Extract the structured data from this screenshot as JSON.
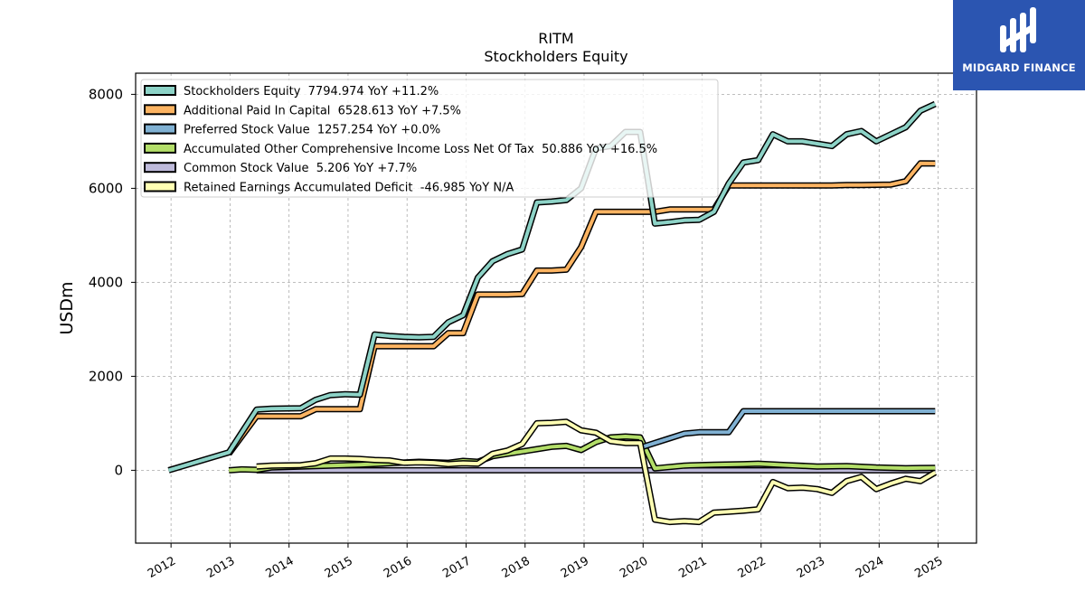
{
  "chart_data": {
    "type": "line",
    "title": "RITM",
    "subtitle": "Stockholders  Equity",
    "ylabel": "USDm",
    "xlabel": "",
    "ylim": [
      -1550,
      8450
    ],
    "xlim": [
      2011.4,
      2025.65
    ],
    "xticks": [
      "2012",
      "2013",
      "2014",
      "2015",
      "2016",
      "2017",
      "2018",
      "2019",
      "2020",
      "2021",
      "2022",
      "2023",
      "2024",
      "2025"
    ],
    "yticks": [
      0,
      2000,
      4000,
      6000,
      8000
    ],
    "grid": true,
    "legend_position": "top-left",
    "series": [
      {
        "name": "Stockholders Equity  7794.974 YoY +11.2%",
        "color": "#8dd3c7",
        "points": [
          [
            2011.96,
            0
          ],
          [
            2012.98,
            380
          ],
          [
            2013.45,
            1290
          ],
          [
            2013.7,
            1310
          ],
          [
            2014.2,
            1320
          ],
          [
            2014.45,
            1500
          ],
          [
            2014.7,
            1600
          ],
          [
            2014.95,
            1620
          ],
          [
            2015.2,
            1610
          ],
          [
            2015.45,
            2890
          ],
          [
            2015.7,
            2860
          ],
          [
            2015.95,
            2840
          ],
          [
            2016.2,
            2830
          ],
          [
            2016.45,
            2840
          ],
          [
            2016.7,
            3150
          ],
          [
            2016.95,
            3300
          ],
          [
            2017.2,
            4100
          ],
          [
            2017.45,
            4450
          ],
          [
            2017.7,
            4600
          ],
          [
            2017.95,
            4700
          ],
          [
            2018.2,
            5700
          ],
          [
            2018.45,
            5720
          ],
          [
            2018.7,
            5750
          ],
          [
            2018.95,
            6000
          ],
          [
            2019.2,
            6850
          ],
          [
            2019.45,
            6900
          ],
          [
            2019.7,
            7200
          ],
          [
            2019.95,
            7200
          ],
          [
            2020.2,
            5250
          ],
          [
            2020.45,
            5280
          ],
          [
            2020.7,
            5320
          ],
          [
            2020.95,
            5330
          ],
          [
            2021.2,
            5500
          ],
          [
            2021.45,
            6100
          ],
          [
            2021.7,
            6550
          ],
          [
            2021.95,
            6600
          ],
          [
            2022.2,
            7150
          ],
          [
            2022.45,
            7000
          ],
          [
            2022.7,
            7000
          ],
          [
            2022.95,
            6950
          ],
          [
            2023.2,
            6900
          ],
          [
            2023.45,
            7150
          ],
          [
            2023.7,
            7220
          ],
          [
            2023.95,
            7000
          ],
          [
            2024.2,
            7150
          ],
          [
            2024.45,
            7300
          ],
          [
            2024.7,
            7650
          ],
          [
            2024.95,
            7795
          ]
        ]
      },
      {
        "name": "Additional Paid In Capital  6528.613 YoY +7.5%",
        "color": "#fdb462",
        "points": [
          [
            2012.98,
            350
          ],
          [
            2013.45,
            1150
          ],
          [
            2013.7,
            1150
          ],
          [
            2014.2,
            1150
          ],
          [
            2014.45,
            1300
          ],
          [
            2014.7,
            1300
          ],
          [
            2014.95,
            1300
          ],
          [
            2015.2,
            1300
          ],
          [
            2015.45,
            2640
          ],
          [
            2015.7,
            2640
          ],
          [
            2015.95,
            2640
          ],
          [
            2016.2,
            2640
          ],
          [
            2016.45,
            2640
          ],
          [
            2016.7,
            2920
          ],
          [
            2016.95,
            2920
          ],
          [
            2017.2,
            3740
          ],
          [
            2017.45,
            3740
          ],
          [
            2017.7,
            3740
          ],
          [
            2017.95,
            3750
          ],
          [
            2018.2,
            4250
          ],
          [
            2018.45,
            4250
          ],
          [
            2018.7,
            4270
          ],
          [
            2018.95,
            4750
          ],
          [
            2019.2,
            5500
          ],
          [
            2019.45,
            5500
          ],
          [
            2019.7,
            5500
          ],
          [
            2019.95,
            5500
          ],
          [
            2020.2,
            5500
          ],
          [
            2020.45,
            5550
          ],
          [
            2020.7,
            5550
          ],
          [
            2020.95,
            5550
          ],
          [
            2021.2,
            5550
          ],
          [
            2021.45,
            6060
          ],
          [
            2021.7,
            6060
          ],
          [
            2021.95,
            6060
          ],
          [
            2022.2,
            6060
          ],
          [
            2022.45,
            6060
          ],
          [
            2022.7,
            6060
          ],
          [
            2022.95,
            6060
          ],
          [
            2023.2,
            6060
          ],
          [
            2023.45,
            6070
          ],
          [
            2023.7,
            6070
          ],
          [
            2023.95,
            6075
          ],
          [
            2024.2,
            6080
          ],
          [
            2024.45,
            6150
          ],
          [
            2024.7,
            6530
          ],
          [
            2024.95,
            6529
          ]
        ]
      },
      {
        "name": "Preferred Stock Value  1257.254 YoY +0.0%",
        "color": "#80b1d3",
        "points": [
          [
            2019.95,
            480
          ],
          [
            2020.2,
            580
          ],
          [
            2020.45,
            680
          ],
          [
            2020.7,
            780
          ],
          [
            2020.95,
            810
          ],
          [
            2021.2,
            810
          ],
          [
            2021.45,
            810
          ],
          [
            2021.7,
            1257
          ],
          [
            2021.95,
            1257
          ],
          [
            2022.45,
            1257
          ],
          [
            2022.95,
            1257
          ],
          [
            2023.45,
            1257
          ],
          [
            2023.95,
            1257
          ],
          [
            2024.45,
            1257
          ],
          [
            2024.95,
            1257
          ]
        ]
      },
      {
        "name": "Accumulated Other Comprehensive Income Loss Net Of Tax  50.886 YoY +16.5%",
        "color": "#b3de69",
        "points": [
          [
            2012.98,
            0
          ],
          [
            2013.2,
            20
          ],
          [
            2013.45,
            10
          ],
          [
            2013.7,
            60
          ],
          [
            2014.2,
            80
          ],
          [
            2014.7,
            100
          ],
          [
            2015.2,
            120
          ],
          [
            2015.7,
            150
          ],
          [
            2016.2,
            180
          ],
          [
            2016.7,
            160
          ],
          [
            2016.95,
            200
          ],
          [
            2017.2,
            180
          ],
          [
            2017.45,
            300
          ],
          [
            2017.7,
            350
          ],
          [
            2017.95,
            400
          ],
          [
            2018.2,
            450
          ],
          [
            2018.45,
            500
          ],
          [
            2018.7,
            520
          ],
          [
            2018.95,
            430
          ],
          [
            2019.2,
            600
          ],
          [
            2019.45,
            700
          ],
          [
            2019.7,
            720
          ],
          [
            2019.95,
            700
          ],
          [
            2020.2,
            40
          ],
          [
            2020.7,
            100
          ],
          [
            2021.2,
            120
          ],
          [
            2021.7,
            130
          ],
          [
            2021.95,
            140
          ],
          [
            2022.45,
            110
          ],
          [
            2022.95,
            80
          ],
          [
            2023.45,
            90
          ],
          [
            2023.95,
            60
          ],
          [
            2024.45,
            44
          ],
          [
            2024.95,
            51
          ]
        ]
      },
      {
        "name": "Common Stock Value  5.206 YoY +7.7%",
        "color": "#bebada",
        "points": [
          [
            2013.45,
            0
          ],
          [
            2014.45,
            0
          ],
          [
            2015.45,
            0
          ],
          [
            2016.45,
            0
          ],
          [
            2017.45,
            0
          ],
          [
            2018.45,
            0
          ],
          [
            2019.45,
            0
          ],
          [
            2020.45,
            0
          ],
          [
            2021.45,
            0
          ],
          [
            2022.45,
            0
          ],
          [
            2023.45,
            0
          ],
          [
            2024.45,
            0
          ],
          [
            2024.95,
            5
          ]
        ]
      },
      {
        "name": "Retained Earnings Accumulated Deficit  -46.985 YoY N/A",
        "color": "#ffffb3",
        "points": [
          [
            2013.45,
            80
          ],
          [
            2013.7,
            100
          ],
          [
            2014.2,
            110
          ],
          [
            2014.45,
            150
          ],
          [
            2014.7,
            250
          ],
          [
            2014.95,
            250
          ],
          [
            2015.2,
            240
          ],
          [
            2015.45,
            220
          ],
          [
            2015.7,
            210
          ],
          [
            2015.95,
            160
          ],
          [
            2016.2,
            170
          ],
          [
            2016.45,
            160
          ],
          [
            2016.7,
            130
          ],
          [
            2016.95,
            150
          ],
          [
            2017.2,
            140
          ],
          [
            2017.45,
            350
          ],
          [
            2017.7,
            420
          ],
          [
            2017.95,
            560
          ],
          [
            2018.2,
            1000
          ],
          [
            2018.45,
            1010
          ],
          [
            2018.7,
            1030
          ],
          [
            2018.95,
            850
          ],
          [
            2019.2,
            800
          ],
          [
            2019.45,
            620
          ],
          [
            2019.7,
            580
          ],
          [
            2019.95,
            580
          ],
          [
            2020.2,
            -1050
          ],
          [
            2020.45,
            -1100
          ],
          [
            2020.7,
            -1080
          ],
          [
            2020.95,
            -1100
          ],
          [
            2021.2,
            -900
          ],
          [
            2021.45,
            -880
          ],
          [
            2021.7,
            -860
          ],
          [
            2021.95,
            -830
          ],
          [
            2022.2,
            -250
          ],
          [
            2022.45,
            -380
          ],
          [
            2022.7,
            -370
          ],
          [
            2022.95,
            -400
          ],
          [
            2023.2,
            -480
          ],
          [
            2023.45,
            -230
          ],
          [
            2023.7,
            -140
          ],
          [
            2023.95,
            -400
          ],
          [
            2024.2,
            -280
          ],
          [
            2024.45,
            -180
          ],
          [
            2024.7,
            -230
          ],
          [
            2024.95,
            -47
          ]
        ]
      }
    ]
  },
  "logo": {
    "text": "MIDGARD FINANCE"
  }
}
